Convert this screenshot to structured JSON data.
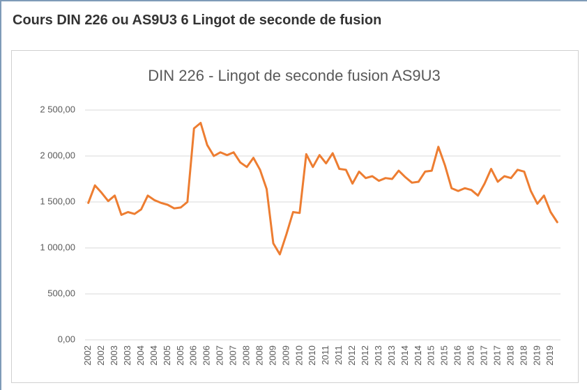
{
  "header": {
    "title": "Cours DIN 226 ou AS9U3 6 Lingot de seconde de fusion"
  },
  "chart_data": {
    "type": "line",
    "title": "DIN 226 - Lingot de seconde fusion AS9U3",
    "categories": [
      "2002",
      null,
      "2002",
      null,
      "2003",
      null,
      "2003",
      null,
      "2004",
      null,
      "2004",
      null,
      "2005",
      null,
      "2005",
      null,
      "2006",
      null,
      "2006",
      null,
      "2007",
      null,
      "2007",
      null,
      "2008",
      null,
      "2008",
      null,
      "2009",
      null,
      "2009",
      null,
      "2010",
      null,
      "2010",
      null,
      "2011",
      null,
      "2011",
      null,
      "2012",
      null,
      "2012",
      null,
      "2013",
      null,
      "2013",
      null,
      "2014",
      null,
      "2014",
      null,
      "2015",
      null,
      "2015",
      null,
      "2016",
      null,
      "2016",
      null,
      "2017",
      null,
      "2017",
      null,
      "2018",
      null,
      "2018",
      null,
      "2019",
      null,
      "2019",
      null
    ],
    "values": [
      1490,
      1680,
      1600,
      1510,
      1570,
      1360,
      1390,
      1370,
      1420,
      1570,
      1520,
      1490,
      1470,
      1430,
      1440,
      1500,
      2300,
      2360,
      2120,
      2000,
      2040,
      2010,
      2040,
      1930,
      1880,
      1980,
      1850,
      1640,
      1050,
      930,
      1150,
      1390,
      1380,
      2020,
      1880,
      2010,
      1920,
      2030,
      1860,
      1850,
      1700,
      1830,
      1760,
      1780,
      1730,
      1760,
      1750,
      1840,
      1770,
      1710,
      1720,
      1830,
      1840,
      2100,
      1900,
      1650,
      1620,
      1650,
      1630,
      1570,
      1700,
      1860,
      1720,
      1780,
      1760,
      1850,
      1830,
      1620,
      1480,
      1570,
      1390,
      1280
    ],
    "color": "#ed7d31",
    "ylim": [
      0,
      2500
    ],
    "yticks": [
      {
        "value": 0,
        "label": "0,00"
      },
      {
        "value": 500,
        "label": "500,00"
      },
      {
        "value": 1000,
        "label": "1 000,00"
      },
      {
        "value": 1500,
        "label": "1 500,00"
      },
      {
        "value": 2000,
        "label": "2 000,00"
      },
      {
        "value": 2500,
        "label": "2 500,00"
      }
    ],
    "grid": true
  }
}
